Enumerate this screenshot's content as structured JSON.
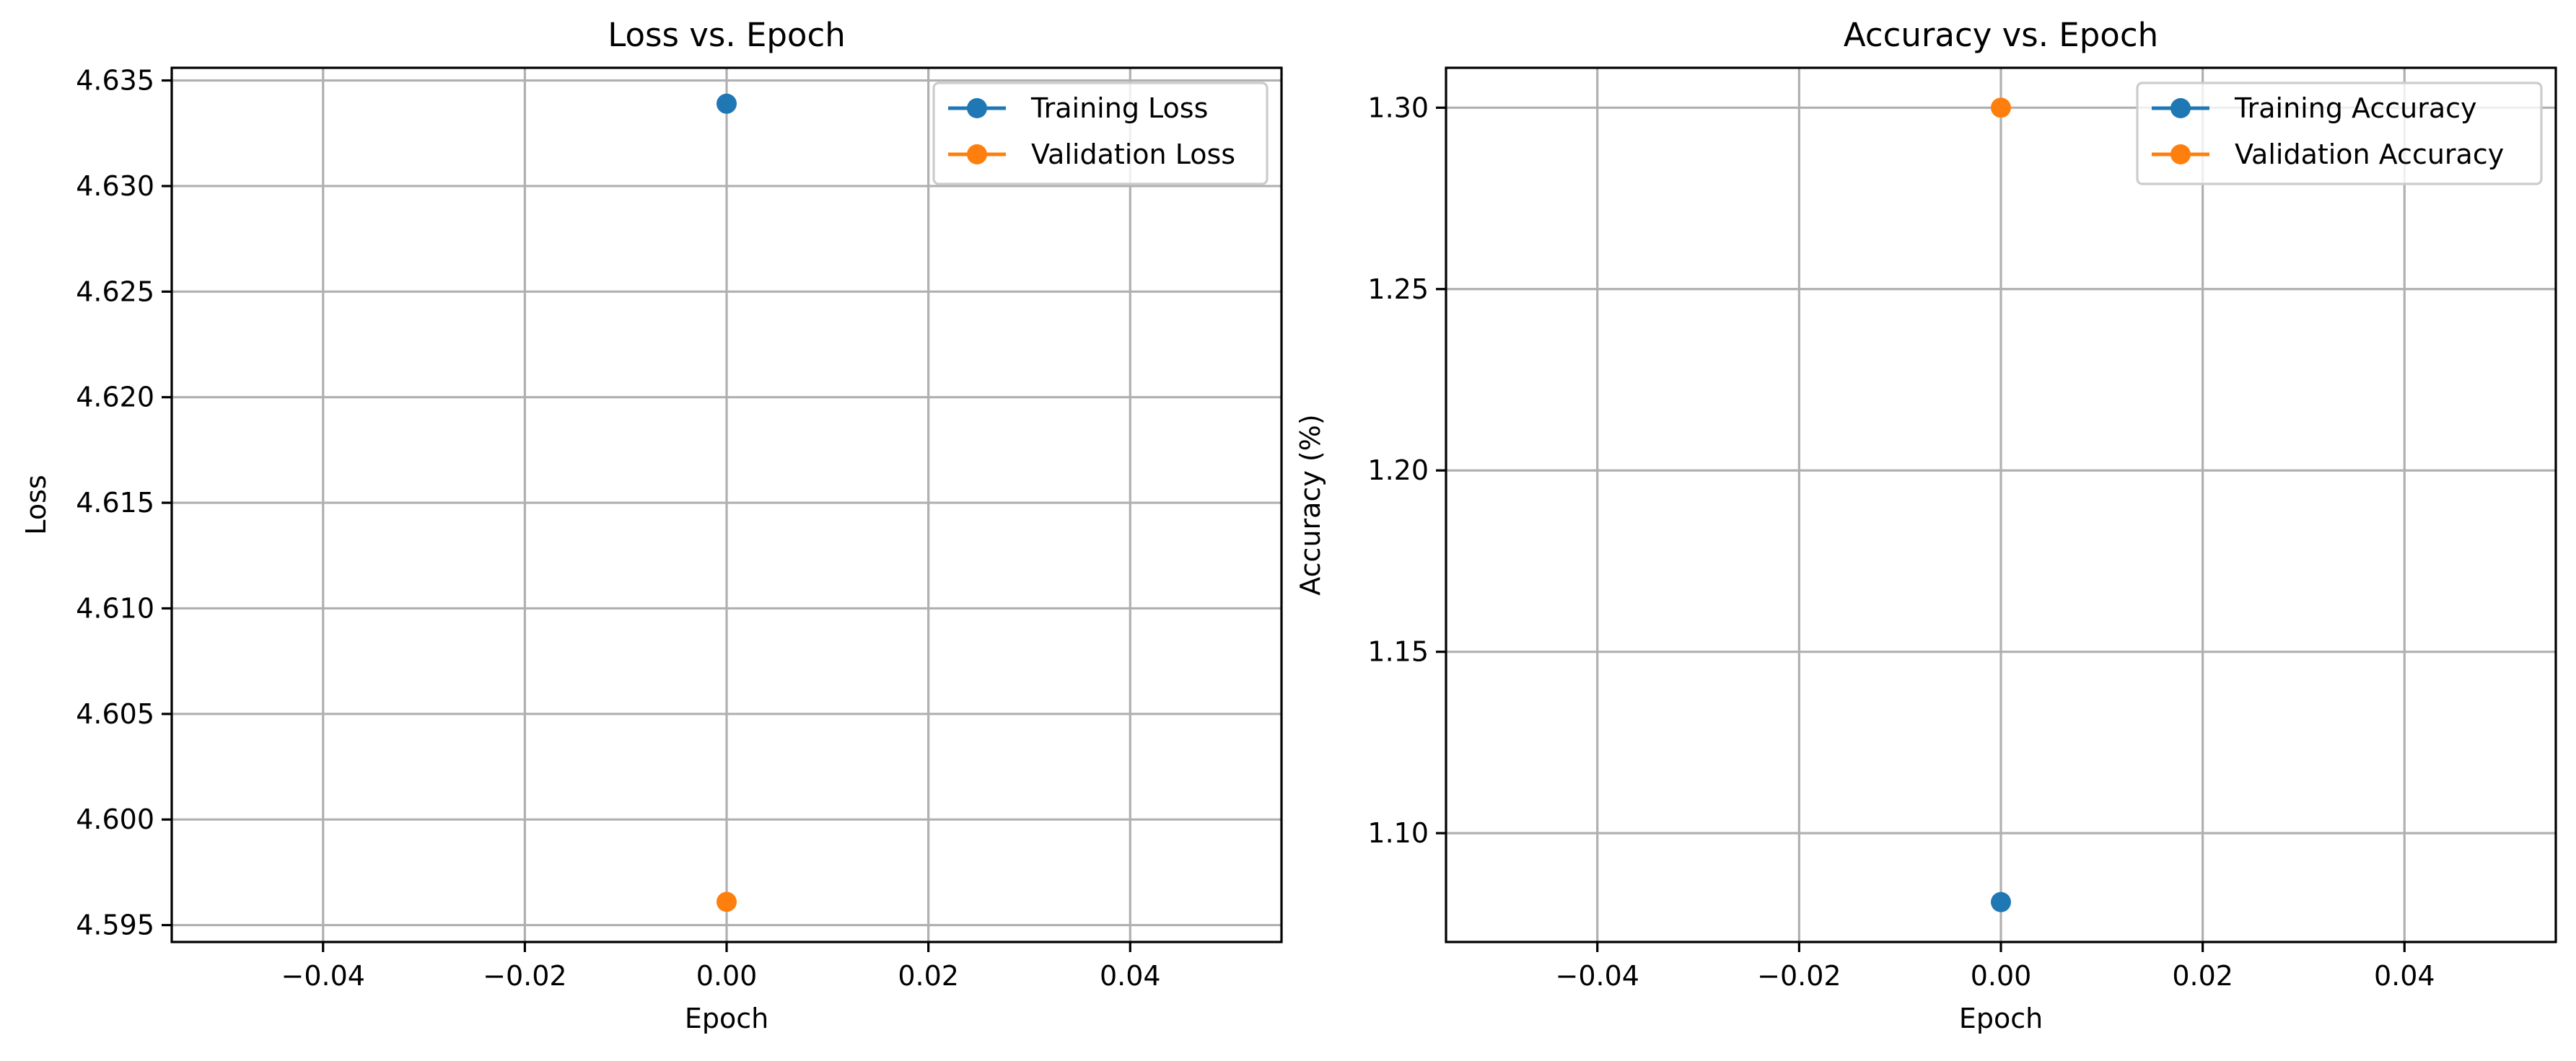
{
  "chart_data": [
    {
      "type": "scatter",
      "title": "Loss vs. Epoch",
      "xlabel": "Epoch",
      "ylabel": "Loss",
      "xlim": [
        -0.055,
        0.055
      ],
      "ylim": [
        4.5942,
        4.6356
      ],
      "xticks": [
        -0.04,
        -0.02,
        0.0,
        0.02,
        0.04
      ],
      "xtick_labels": [
        "−0.04",
        "−0.02",
        "0.00",
        "0.02",
        "0.04"
      ],
      "yticks": [
        4.595,
        4.6,
        4.605,
        4.61,
        4.615,
        4.62,
        4.625,
        4.63,
        4.635
      ],
      "ytick_labels": [
        "4.595",
        "4.600",
        "4.605",
        "4.610",
        "4.615",
        "4.620",
        "4.625",
        "4.630",
        "4.635"
      ],
      "grid": true,
      "legend_position": "top-right",
      "series": [
        {
          "name": "Training Loss",
          "color": "#1f77b4",
          "x": [
            0
          ],
          "y": [
            4.6339
          ]
        },
        {
          "name": "Validation Loss",
          "color": "#ff7f0e",
          "x": [
            0
          ],
          "y": [
            4.5961
          ]
        }
      ]
    },
    {
      "type": "scatter",
      "title": "Accuracy vs. Epoch",
      "xlabel": "Epoch",
      "ylabel": "Accuracy (%)",
      "xlim": [
        -0.055,
        0.055
      ],
      "ylim": [
        1.07,
        1.311
      ],
      "xticks": [
        -0.04,
        -0.02,
        0.0,
        0.02,
        0.04
      ],
      "xtick_labels": [
        "−0.04",
        "−0.02",
        "0.00",
        "0.02",
        "0.04"
      ],
      "yticks": [
        1.1,
        1.15,
        1.2,
        1.25,
        1.3
      ],
      "ytick_labels": [
        "1.10",
        "1.15",
        "1.20",
        "1.25",
        "1.30"
      ],
      "grid": true,
      "legend_position": "top-right",
      "series": [
        {
          "name": "Training Accuracy",
          "color": "#1f77b4",
          "x": [
            0
          ],
          "y": [
            1.081
          ]
        },
        {
          "name": "Validation Accuracy",
          "color": "#ff7f0e",
          "x": [
            0
          ],
          "y": [
            1.3
          ]
        }
      ]
    }
  ]
}
